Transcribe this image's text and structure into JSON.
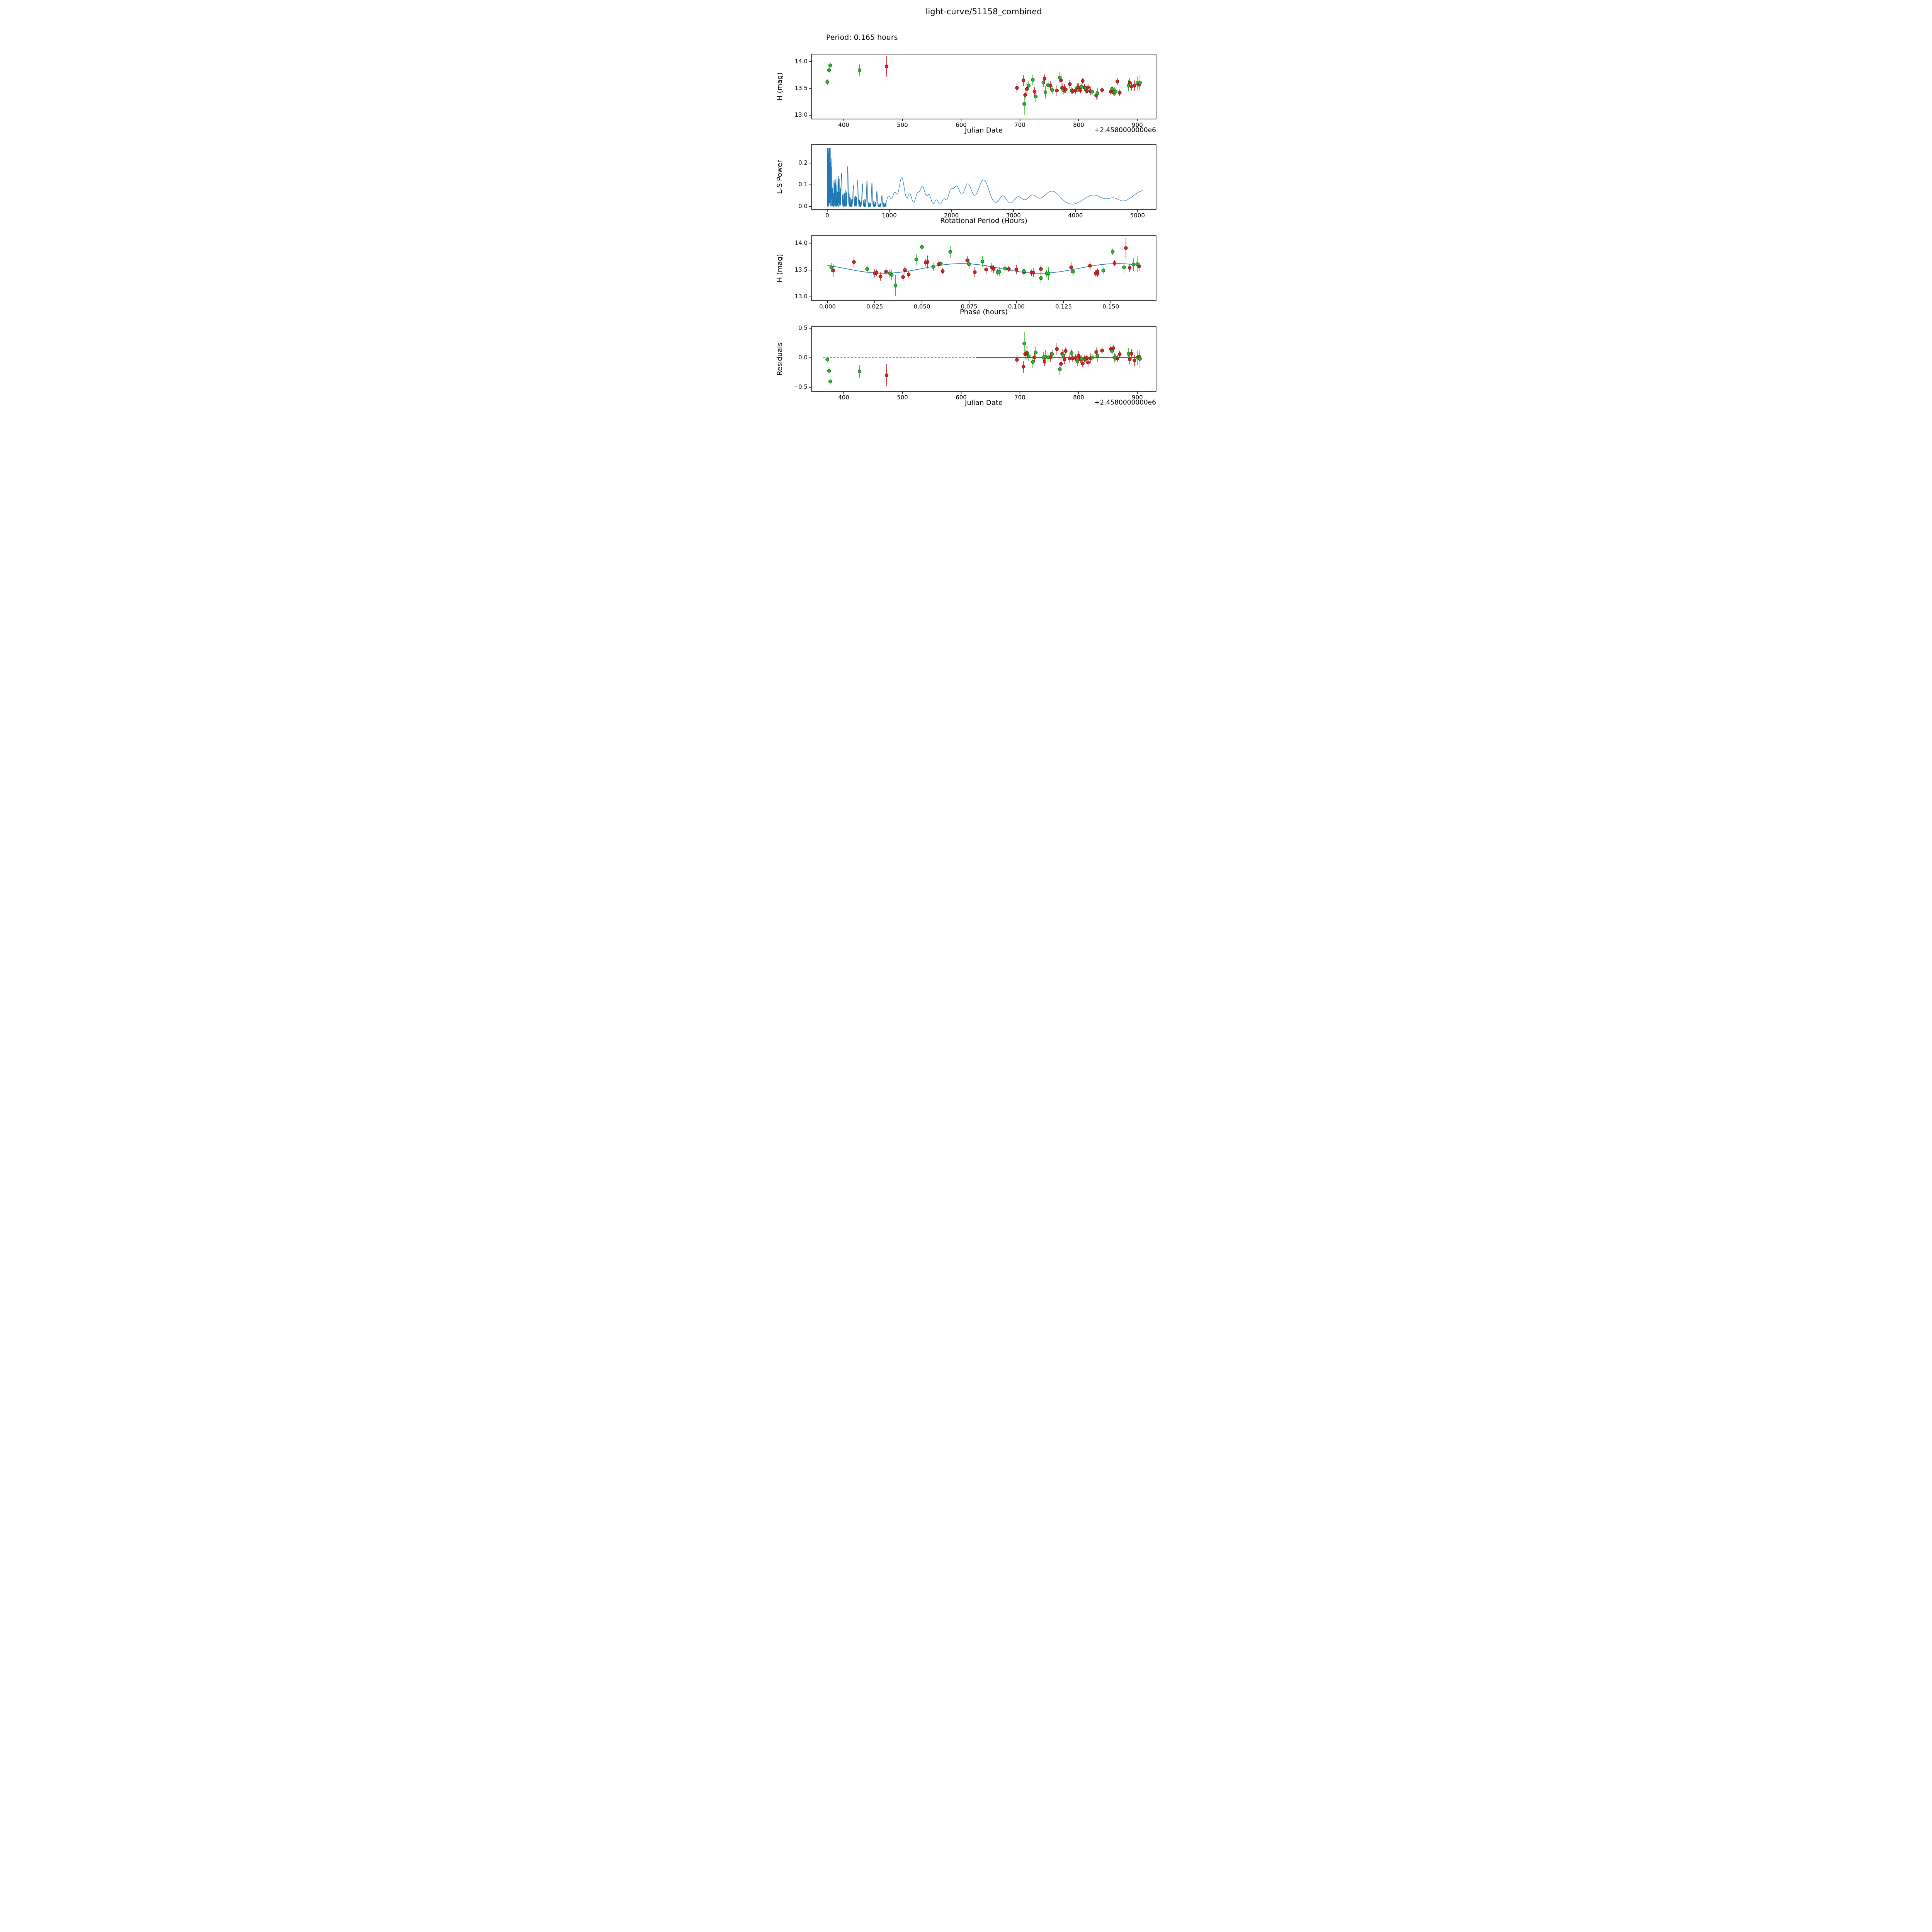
{
  "title": "light-curve/51158_combined",
  "annotation": "Period: 0.165 hours",
  "chart_data": {
    "type": "multi-panel",
    "panels": [
      {
        "id": "lightcurve",
        "type": "scatter",
        "xlabel": "Julian Date",
        "ylabel": "H (mag)",
        "x_offset_label": "+2.4580000000e6",
        "xlim": [
          345,
          932
        ],
        "ylim": [
          12.93,
          14.14
        ],
        "xticks": [
          400,
          500,
          600,
          700,
          800,
          900
        ],
        "xtick_labels": [
          "400",
          "500",
          "600",
          "700",
          "800",
          "900"
        ],
        "yticks": [
          13.0,
          13.5,
          14.0
        ],
        "ytick_labels": [
          "13.0",
          "13.5",
          "14.0"
        ]
      },
      {
        "id": "periodogram",
        "type": "line",
        "xlabel": "Rotational Period (Hours)",
        "ylabel": "L-S Power",
        "xlim": [
          -255,
          5300
        ],
        "ylim": [
          -0.013,
          0.285
        ],
        "xticks": [
          0,
          1000,
          2000,
          3000,
          4000,
          5000
        ],
        "xtick_labels": [
          "0",
          "1000",
          "2000",
          "3000",
          "4000",
          "5000"
        ],
        "yticks": [
          0.0,
          0.1,
          0.2
        ],
        "ytick_labels": [
          "0.0",
          "0.1",
          "0.2"
        ]
      },
      {
        "id": "phase",
        "type": "scatter",
        "xlabel": "Phase (hours)",
        "ylabel": "H (mag)",
        "xlim": [
          -0.0085,
          0.174
        ],
        "ylim": [
          12.93,
          14.14
        ],
        "xticks": [
          0.0,
          0.025,
          0.05,
          0.075,
          0.1,
          0.125,
          0.15
        ],
        "xtick_labels": [
          "0.000",
          "0.025",
          "0.050",
          "0.075",
          "0.100",
          "0.125",
          "0.150"
        ],
        "yticks": [
          13.0,
          13.5,
          14.0
        ],
        "ytick_labels": [
          "13.0",
          "13.5",
          "14.0"
        ]
      },
      {
        "id": "residuals",
        "type": "scatter",
        "xlabel": "Julian Date",
        "ylabel": "Residuals",
        "x_offset_label": "+2.4580000000e6",
        "xlim": [
          345,
          932
        ],
        "ylim": [
          -0.57,
          0.53
        ],
        "xticks": [
          400,
          500,
          600,
          700,
          800,
          900
        ],
        "xtick_labels": [
          "400",
          "500",
          "600",
          "700",
          "800",
          "900"
        ],
        "yticks": [
          -0.5,
          0.0,
          0.5
        ],
        "ytick_labels": [
          "−0.5",
          "0.0",
          "0.5"
        ]
      }
    ],
    "point_columns": [
      "julian_date_minus_2458000",
      "phase_hours",
      "H_mag",
      "H_err",
      "series"
    ],
    "points": [
      [
        372.0,
        0.06,
        13.62,
        0.05,
        "g"
      ],
      [
        375.0,
        0.151,
        13.84,
        0.06,
        "g"
      ],
      [
        377.0,
        0.05,
        13.93,
        0.05,
        "g"
      ],
      [
        427.0,
        0.065,
        13.84,
        0.11,
        "g"
      ],
      [
        473.0,
        0.158,
        13.91,
        0.19,
        "r"
      ],
      [
        695.0,
        0.1,
        13.51,
        0.09,
        "r"
      ],
      [
        706.0,
        0.014,
        13.65,
        0.1,
        "r"
      ],
      [
        707.5,
        0.036,
        13.21,
        0.2,
        "g"
      ],
      [
        709.0,
        0.028,
        13.38,
        0.08,
        "r"
      ],
      [
        712.0,
        0.003,
        13.49,
        0.12,
        "r"
      ],
      [
        715.0,
        0.002,
        13.55,
        0.08,
        "g"
      ],
      [
        722.0,
        0.082,
        13.66,
        0.1,
        "g"
      ],
      [
        725.0,
        0.025,
        13.44,
        0.08,
        "r"
      ],
      [
        727.0,
        0.113,
        13.35,
        0.1,
        "g"
      ],
      [
        740.0,
        0.075,
        13.61,
        0.09,
        "g"
      ],
      [
        742.0,
        0.074,
        13.68,
        0.08,
        "r"
      ],
      [
        743.5,
        0.117,
        13.43,
        0.12,
        "g"
      ],
      [
        748.0,
        0.056,
        13.56,
        0.08,
        "g"
      ],
      [
        752.0,
        0.087,
        13.55,
        0.08,
        "r"
      ],
      [
        755.0,
        0.091,
        13.47,
        0.08,
        "g"
      ],
      [
        763.0,
        0.078,
        13.46,
        0.1,
        "r"
      ],
      [
        768.0,
        0.047,
        13.7,
        0.1,
        "g"
      ],
      [
        770.0,
        0.053,
        13.65,
        0.12,
        "r"
      ],
      [
        772.0,
        0.084,
        13.51,
        0.08,
        "r"
      ],
      [
        774.0,
        0.13,
        13.47,
        0.08,
        "g"
      ],
      [
        776.0,
        0.041,
        13.5,
        0.08,
        "r"
      ],
      [
        778.0,
        0.061,
        13.48,
        0.06,
        "r"
      ],
      [
        785.0,
        0.139,
        13.58,
        0.08,
        "r"
      ],
      [
        788.0,
        0.09,
        13.46,
        0.06,
        "g"
      ],
      [
        790.0,
        0.026,
        13.45,
        0.06,
        "r"
      ],
      [
        795.0,
        0.104,
        13.46,
        0.06,
        "r"
      ],
      [
        798.0,
        0.021,
        13.52,
        0.08,
        "g"
      ],
      [
        800.0,
        0.088,
        13.52,
        0.08,
        "r"
      ],
      [
        803.0,
        0.031,
        13.47,
        0.06,
        "r"
      ],
      [
        805.0,
        0.094,
        13.53,
        0.06,
        "g"
      ],
      [
        807.0,
        0.052,
        13.64,
        0.06,
        "r"
      ],
      [
        810.0,
        0.096,
        13.52,
        0.06,
        "r"
      ],
      [
        812.0,
        0.104,
        13.48,
        0.05,
        "g"
      ],
      [
        814.0,
        0.108,
        13.45,
        0.06,
        "r"
      ],
      [
        816.0,
        0.113,
        13.52,
        0.08,
        "r"
      ],
      [
        820.0,
        0.109,
        13.45,
        0.08,
        "r"
      ],
      [
        823.0,
        0.116,
        13.44,
        0.06,
        "g"
      ],
      [
        830.0,
        0.04,
        13.37,
        0.08,
        "r"
      ],
      [
        832.0,
        0.034,
        13.41,
        0.1,
        "g"
      ],
      [
        840.0,
        0.143,
        13.47,
        0.06,
        "r"
      ],
      [
        855.0,
        0.142,
        13.44,
        0.06,
        "r"
      ],
      [
        857.0,
        0.146,
        13.49,
        0.06,
        "g"
      ],
      [
        859.0,
        0.143,
        13.43,
        0.06,
        "r"
      ],
      [
        861.0,
        0.033,
        13.44,
        0.08,
        "g"
      ],
      [
        863.0,
        0.117,
        13.44,
        0.06,
        "g"
      ],
      [
        866.0,
        0.152,
        13.63,
        0.06,
        "r"
      ],
      [
        870.0,
        0.043,
        13.42,
        0.06,
        "r"
      ],
      [
        885.0,
        0.157,
        13.55,
        0.1,
        "g"
      ],
      [
        887.0,
        0.059,
        13.61,
        0.08,
        "r"
      ],
      [
        890.0,
        0.16,
        13.54,
        0.08,
        "r"
      ],
      [
        895.0,
        0.129,
        13.55,
        0.1,
        "r"
      ],
      [
        900.0,
        0.162,
        13.6,
        0.12,
        "g"
      ],
      [
        903.0,
        0.165,
        13.57,
        0.08,
        "r"
      ],
      [
        904.5,
        0.164,
        13.61,
        0.15,
        "g"
      ]
    ],
    "series_colors": {
      "g": "#2db92d",
      "r": "#cd2626"
    },
    "series_edge_colors": {
      "g": "#0c5f0c",
      "r": "#7e0f0f"
    },
    "fit": {
      "mean": 13.53,
      "amplitude": 0.09,
      "period_hours": 0.165,
      "cycles": 2,
      "phase_of_max": 0.071,
      "color": "#1f77b4"
    },
    "periodogram": {
      "color": "#1f77b4",
      "noise_seed": 20,
      "dense_range": [
        3,
        950
      ],
      "envelope": {
        "a1": 0.26,
        "tau1": 140,
        "a2": 0.06,
        "tau2": 700
      },
      "max_power": 0.268,
      "extra_spikes": [
        [
          230,
          0.155
        ],
        [
          330,
          0.185
        ],
        [
          420,
          0.1
        ],
        [
          490,
          0.12
        ],
        [
          565,
          0.105
        ],
        [
          640,
          0.12
        ],
        [
          720,
          0.11
        ],
        [
          800,
          0.072
        ],
        [
          880,
          0.052
        ]
      ],
      "smooth_range": [
        950,
        5090
      ],
      "baseline": 0.003,
      "smooth_peaks": [
        [
          990,
          0.045,
          30
        ],
        [
          1085,
          0.06,
          32
        ],
        [
          1200,
          0.13,
          42
        ],
        [
          1330,
          0.055,
          32
        ],
        [
          1450,
          0.05,
          30
        ],
        [
          1535,
          0.09,
          40
        ],
        [
          1640,
          0.05,
          32
        ],
        [
          1760,
          0.028,
          30
        ],
        [
          1880,
          0.032,
          30
        ],
        [
          1985,
          0.06,
          38
        ],
        [
          2085,
          0.088,
          52
        ],
        [
          2265,
          0.1,
          62
        ],
        [
          2520,
          0.12,
          85
        ],
        [
          2830,
          0.046,
          60
        ],
        [
          3080,
          0.042,
          70
        ],
        [
          3300,
          0.046,
          75
        ],
        [
          3620,
          0.068,
          135
        ],
        [
          4290,
          0.05,
          160
        ],
        [
          4620,
          0.028,
          90
        ],
        [
          5120,
          0.072,
          200
        ]
      ]
    },
    "residual_zero_line": {
      "dashed_x": [
        365,
        625
      ],
      "solid_x": [
        625,
        907
      ]
    }
  }
}
